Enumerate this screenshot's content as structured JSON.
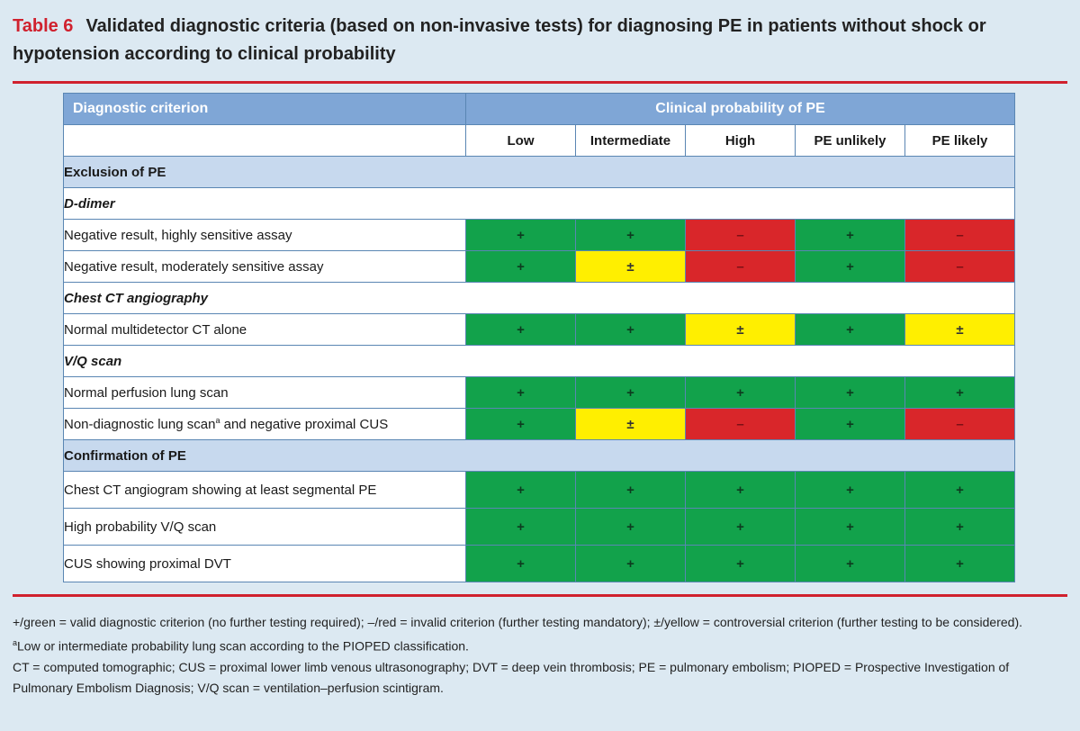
{
  "caption": {
    "table_number": "Table 6",
    "title": "Validated diagnostic criteria (based on non-invasive tests) for diagnosing PE in patients without shock or hypotension according to clinical probability"
  },
  "header": {
    "criterion": "Diagnostic criterion",
    "probability": "Clinical probability of PE",
    "columns": [
      "Low",
      "Intermediate",
      "High",
      "PE unlikely",
      "PE likely"
    ]
  },
  "colors": {
    "green": "#12a24b",
    "yellow": "#ffef00",
    "red": "#d9262a",
    "header_blue": "#7fa6d6",
    "section_blue": "#c7d9ee",
    "rule_red": "#d0212e"
  },
  "sections": {
    "exclusion": {
      "title": "Exclusion of PE",
      "ddimer": {
        "title": "D-dimer",
        "rows": [
          {
            "label": "Negative result, highly sensitive assay",
            "marks": [
              "+",
              "+",
              "–",
              "+",
              "–"
            ]
          },
          {
            "label": "Negative result, moderately sensitive assay",
            "marks": [
              "+",
              "±",
              "–",
              "+",
              "–"
            ]
          }
        ]
      },
      "ct": {
        "title": "Chest CT angiography",
        "rows": [
          {
            "label": "Normal multidetector CT alone",
            "marks": [
              "+",
              "+",
              "±",
              "+",
              "±"
            ]
          }
        ]
      },
      "vq": {
        "title": "V/Q scan",
        "rows": [
          {
            "label": "Normal perfusion lung scan",
            "marks": [
              "+",
              "+",
              "+",
              "+",
              "+"
            ]
          },
          {
            "label": "Non-diagnostic lung scan",
            "superscript": "a",
            "label_suffix": " and negative proximal CUS",
            "marks": [
              "+",
              "±",
              "–",
              "+",
              "–"
            ]
          }
        ]
      }
    },
    "confirmation": {
      "title": "Confirmation of PE",
      "rows": [
        {
          "label": "Chest CT angiogram showing at least segmental PE",
          "marks": [
            "+",
            "+",
            "+",
            "+",
            "+"
          ]
        },
        {
          "label": "High probability V/Q scan",
          "marks": [
            "+",
            "+",
            "+",
            "+",
            "+"
          ]
        },
        {
          "label": "CUS showing proximal DVT",
          "marks": [
            "+",
            "+",
            "+",
            "+",
            "+"
          ]
        }
      ]
    }
  },
  "footnotes": {
    "legend": "+/green = valid diagnostic criterion (no further testing required); –/red = invalid criterion (further testing mandatory); ±/yellow = controversial criterion (further testing to be considered).",
    "note_a_marker": "a",
    "note_a": "Low or intermediate probability lung scan according to the PIOPED classification.",
    "abbreviations": "CT = computed tomographic; CUS = proximal lower limb venous ultrasonography; DVT = deep vein thrombosis; PE = pulmonary embolism; PIOPED = Prospective Investigation of Pulmonary Embolism Diagnosis; V/Q scan = ventilation–perfusion scintigram."
  }
}
